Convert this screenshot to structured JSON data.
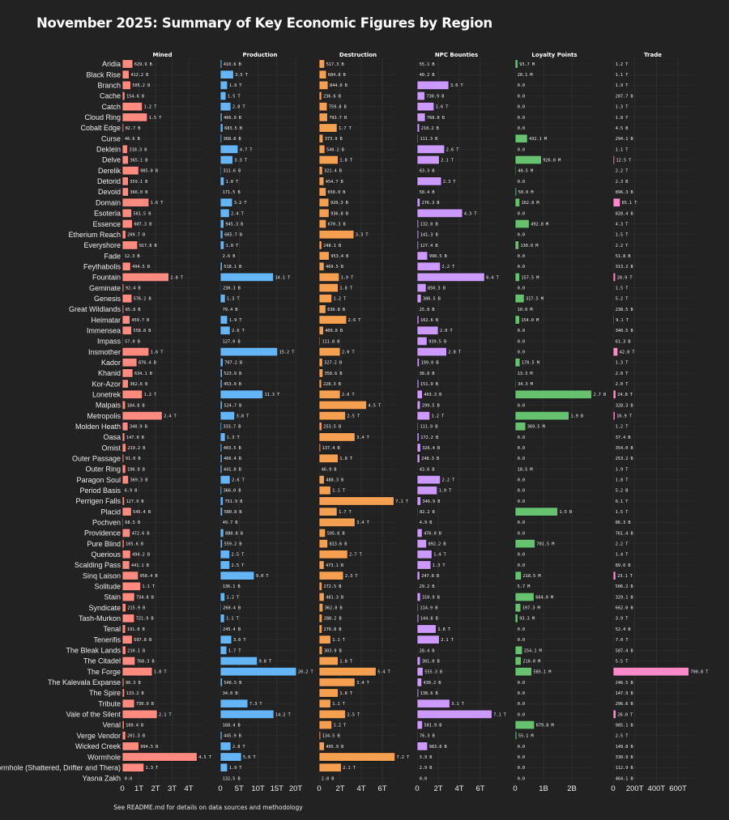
{
  "chart_data": {
    "type": "bar",
    "title": "November 2025: Summary of Key Economic Figures by Region",
    "footer": "See README.md for details on data sources and methodology",
    "orientation": "horizontal",
    "grid": true,
    "categories": [
      "Aridia",
      "Black Rise",
      "Branch",
      "Cache",
      "Catch",
      "Cloud Ring",
      "Cobalt Edge",
      "Curse",
      "Deklein",
      "Delve",
      "Derelik",
      "Detorid",
      "Devoid",
      "Domain",
      "Esoteria",
      "Essence",
      "Etherium Reach",
      "Everyshore",
      "Fade",
      "Feythabolis",
      "Fountain",
      "Geminate",
      "Genesis",
      "Great Wildlands",
      "Heimatar",
      "Immensea",
      "Impass",
      "Insmother",
      "Kador",
      "Khanid",
      "Kor-Azor",
      "Lonetrek",
      "Malpais",
      "Metropolis",
      "Molden Heath",
      "Oasa",
      "Omist",
      "Outer Passage",
      "Outer Ring",
      "Paragon Soul",
      "Period Basis",
      "Perrigen Falls",
      "Placid",
      "Pochven",
      "Providence",
      "Pure Blind",
      "Querious",
      "Scalding Pass",
      "Sinq Laison",
      "Solitude",
      "Stain",
      "Syndicate",
      "Tash-Murkon",
      "Tenal",
      "Tenerifis",
      "The Bleak Lands",
      "The Citadel",
      "The Forge",
      "The Kalevala Expanse",
      "The Spire",
      "Tribute",
      "Vale of the Silent",
      "Venal",
      "Verge Vendor",
      "Wicked Creek",
      "Wormhole",
      "Wormhole (Shattered, Drifter and Thera)",
      "Yasna Zakh"
    ],
    "series": [
      {
        "name": "Mined",
        "color": "#ff8a80",
        "ticks": [
          "0",
          "1T",
          "2T",
          "3T",
          "4T"
        ],
        "tick_values": [
          0,
          1000000000000.0,
          2000000000000.0,
          3000000000000.0,
          4000000000000.0
        ],
        "values": [
          "629.9 B",
          "412.2 B",
          "505.2 B",
          "154.6 B",
          "1.2 T",
          "1.5 T",
          "82.7 B",
          "46.6 B",
          "318.3 B",
          "365.1 B",
          "985.0 B",
          "359.1 B",
          "366.0 B",
          "1.6 T",
          "561.5 B",
          "607.3 B",
          "209.7 B",
          "917.8 B",
          "12.3 B",
          "494.5 B",
          "2.8 T",
          "92.4 B",
          "576.2 B",
          "85.8 B",
          "459.7 B",
          "558.8 B",
          "57.0 B",
          "1.6 T",
          "876.4 B",
          "634.1 B",
          "362.6 B",
          "1.2 T",
          "184.8 B",
          "2.4 T",
          "340.9 B",
          "147.0 B",
          "219.2 B",
          "91.0 B",
          "198.9 B",
          "369.3 B",
          "6.9 B",
          "127.9 B",
          "545.4 B",
          "68.5 B",
          "472.6 B",
          "105.6 B",
          "494.2 B",
          "441.1 B",
          "958.4 B",
          "1.1 T",
          "734.8 B",
          "215.9 B",
          "721.9 B",
          "191.0 B",
          "597.8 B",
          "210.1 B",
          "768.3 B",
          "1.8 T",
          "96.3 B",
          "133.2 B",
          "730.9 B",
          "2.1 T",
          "109.4 B",
          "201.3 B",
          "994.5 B",
          "4.5 T",
          "1.3 T",
          "0.0"
        ]
      },
      {
        "name": "Production",
        "color": "#64b5f6",
        "ticks": [
          "0",
          "5T",
          "10T",
          "15T",
          "20T"
        ],
        "tick_values": [
          0,
          5000000000000.0,
          10000000000000.0,
          15000000000000.0,
          20000000000000.0
        ],
        "values": [
          "410.6 B",
          "3.5 T",
          "1.9 T",
          "1.5 T",
          "2.8 T",
          "466.9 B",
          "683.5 B",
          "368.8 B",
          "4.7 T",
          "3.3 T",
          "311.6 B",
          "1.0 T",
          "171.5 B",
          "3.2 T",
          "2.4 T",
          "945.3 B",
          "665.7 B",
          "1.0 T",
          "2.6 B",
          "518.1 B",
          "14.1 T",
          "230.3 B",
          "1.3 T",
          "79.4 B",
          "1.9 T",
          "2.6 T",
          "127.0 B",
          "15.2 T",
          "707.2 B",
          "523.9 B",
          "453.9 B",
          "11.3 T",
          "524.7 B",
          "3.8 T",
          "333.7 B",
          "1.3 T",
          "403.5 B",
          "466.4 B",
          "441.0 B",
          "2.6 T",
          "366.0 B",
          "751.9 B",
          "580.8 B",
          "49.7 B",
          "880.8 B",
          "559.2 B",
          "2.5 T",
          "2.5 T",
          "9.0 T",
          "136.1 B",
          "1.2 T",
          "260.4 B",
          "1.1 T",
          "245.4 B",
          "3.0 T",
          "1.7 T",
          "9.8 T",
          "20.2 T",
          "546.5 B",
          "34.0 B",
          "7.3 T",
          "14.2 T",
          "168.4 B",
          "445.9 B",
          "2.8 T",
          "5.6 T",
          "1.9 T",
          "132.5 B"
        ]
      },
      {
        "name": "Destruction",
        "color": "#f5a050",
        "ticks": [
          "0",
          "2T",
          "4T",
          "6T"
        ],
        "tick_values": [
          0,
          2000000000000.0,
          4000000000000.0,
          6000000000000.0
        ],
        "values": [
          "517.3 B",
          "684.8 B",
          "844.0 B",
          "236.6 B",
          "759.8 B",
          "793.7 B",
          "1.7 T",
          "373.9 B",
          "540.2 B",
          "1.8 T",
          "321.4 B",
          "454.7 B",
          "658.0 B",
          "920.3 B",
          "936.8 B",
          "670.3 B",
          "3.3 T",
          "248.1 B",
          "953.4 B",
          "469.5 B",
          "1.9 T",
          "1.8 T",
          "1.2 T",
          "630.8 B",
          "2.6 T",
          "409.8 B",
          "111.8 B",
          "2.0 T",
          "327.2 B",
          "358.6 B",
          "228.3 B",
          "2.0 T",
          "4.5 T",
          "2.5 T",
          "253.5 B",
          "3.4 T",
          "137.4 B",
          "1.8 T",
          "46.9 B",
          "488.3 B",
          "1.1 T",
          "7.1 T",
          "1.7 T",
          "3.4 T",
          "595.6 B",
          "813.6 B",
          "2.7 T",
          "473.1 B",
          "2.3 T",
          "272.5 B",
          "481.3 B",
          "362.8 B",
          "288.2 B",
          "276.8 B",
          "1.1 T",
          "303.9 B",
          "1.8 T",
          "5.4 T",
          "3.4 T",
          "1.8 T",
          "1.1 T",
          "2.5 T",
          "1.2 T",
          "134.5 B",
          "495.9 B",
          "7.2 T",
          "2.1 T",
          "2.8 B"
        ]
      },
      {
        "name": "NPC Bounties",
        "color": "#cc99ff",
        "ticks": [
          "0",
          "2T",
          "4T",
          "6T"
        ],
        "tick_values": [
          0,
          2000000000000.0,
          4000000000000.0,
          6000000000000.0
        ],
        "values": [
          "55.1 B",
          "40.2 B",
          "3.0 T",
          "730.9 B",
          "1.6 T",
          "768.0 B",
          "218.2 B",
          "111.3 B",
          "2.6 T",
          "2.1 T",
          "63.3 B",
          "2.3 T",
          "58.4 B",
          "276.3 B",
          "4.3 T",
          "132.0 B",
          "141.3 B",
          "127.4 B",
          "990.5 B",
          "2.2 T",
          "6.4 T",
          "850.3 B",
          "386.5 B",
          "25.8 B",
          "162.6 B",
          "2.0 T",
          "939.5 B",
          "2.8 T",
          "199.0 B",
          "38.8 B",
          "151.9 B",
          "493.3 B",
          "299.5 B",
          "1.2 T",
          "111.9 B",
          "172.2 B",
          "326.4 B",
          "248.3 B",
          "43.6 B",
          "2.2 T",
          "1.9 T",
          "346.9 B",
          "82.2 B",
          "4.9 B",
          "476.0 B",
          "892.2 B",
          "1.4 T",
          "1.3 T",
          "247.8 B",
          "29.2 B",
          "310.9 B",
          "114.9 B",
          "144.8 B",
          "1.8 T",
          "2.1 T",
          "28.4 B",
          "301.0 B",
          "555.3 B",
          "430.2 B",
          "138.6 B",
          "3.1 T",
          "7.1 T",
          "501.9 B",
          "76.3 B",
          "983.8 B",
          "3.9 B",
          "2.9 B",
          "0.0"
        ]
      },
      {
        "name": "Loyalty Points",
        "color": "#66c26e",
        "ticks": [
          "0",
          "1B",
          "2B"
        ],
        "tick_values": [
          0,
          1000000000.0,
          2000000000.0
        ],
        "values": [
          "93.7 M",
          "20.1 M",
          "0.0",
          "0.0",
          "0.0",
          "0.0",
          "0.0",
          "432.1 M",
          "0.0",
          "926.0 M",
          "40.5 M",
          "0.0",
          "50.0 M",
          "162.8 M",
          "0.0",
          "492.8 M",
          "0.0",
          "130.0 M",
          "0.0",
          "0.0",
          "157.5 M",
          "0.0",
          "317.5 M",
          "10.0 M",
          "154.0 M",
          "0.0",
          "0.0",
          "0.0",
          "170.5 M",
          "13.3 M",
          "34.3 M",
          "2.7 B",
          "0.0",
          "1.9 B",
          "369.5 M",
          "0.0",
          "0.0",
          "0.0",
          "18.5 M",
          "0.0",
          "0.0",
          "0.0",
          "1.5 B",
          "0.0",
          "0.0",
          "701.5 M",
          "0.0",
          "0.0",
          "218.5 M",
          "5.7 M",
          "664.0 M",
          "197.3 M",
          "93.3 M",
          "0.0",
          "0.0",
          "254.1 M",
          "210.0 M",
          "585.1 M",
          "0.0",
          "0.0",
          "0.0",
          "0.0",
          "679.8 M",
          "55.1 M",
          "0.0",
          "0.0",
          "0.0",
          "0.0"
        ]
      },
      {
        "name": "Trade",
        "color": "#ff88c8",
        "ticks": [
          "0",
          "200T",
          "400T",
          "600T"
        ],
        "tick_values": [
          0,
          200000000000000.0,
          400000000000000.0,
          600000000000000.0
        ],
        "values": [
          "1.2 T",
          "1.1 T",
          "1.9 T",
          "207.7 B",
          "1.3 T",
          "1.8 T",
          "4.5 B",
          "294.1 B",
          "1.1 T",
          "12.5 T",
          "2.2 T",
          "2.3 B",
          "896.3 B",
          "65.1 T",
          "828.4 B",
          "4.3 T",
          "1.5 T",
          "2.2 T",
          "51.8 B",
          "313.2 B",
          "20.9 T",
          "1.5 T",
          "5.2 T",
          "238.5 B",
          "9.1 T",
          "340.5 B",
          "61.3 B",
          "42.8 T",
          "1.3 T",
          "2.0 T",
          "2.0 T",
          "24.8 T",
          "328.3 B",
          "16.9 T",
          "1.2 T",
          "37.4 B",
          "354.0 B",
          "253.2 B",
          "1.9 T",
          "1.8 T",
          "5.2 B",
          "6.1 T",
          "1.5 T",
          "86.3 B",
          "761.4 B",
          "2.2 T",
          "1.4 T",
          "89.0 B",
          "23.1 T",
          "506.2 B",
          "329.1 B",
          "662.0 B",
          "3.9 T",
          "52.4 B",
          "7.0 T",
          "587.4 B",
          "5.5 T",
          "700.8 T",
          "246.5 B",
          "147.9 B",
          "296.6 B",
          "26.0 T",
          "985.1 B",
          "2.5 T",
          "149.8 B",
          "330.9 B",
          "112.9 B",
          "464.1 B"
        ]
      }
    ]
  }
}
